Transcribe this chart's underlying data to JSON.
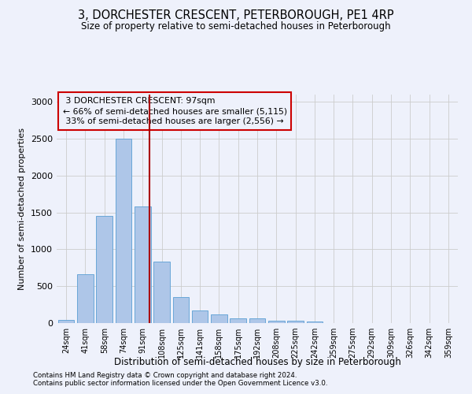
{
  "title1": "3, DORCHESTER CRESCENT, PETERBOROUGH, PE1 4RP",
  "title2": "Size of property relative to semi-detached houses in Peterborough",
  "xlabel": "Distribution of semi-detached houses by size in Peterborough",
  "ylabel": "Number of semi-detached properties",
  "categories": [
    "24sqm",
    "41sqm",
    "58sqm",
    "74sqm",
    "91sqm",
    "108sqm",
    "125sqm",
    "141sqm",
    "158sqm",
    "175sqm",
    "192sqm",
    "208sqm",
    "225sqm",
    "242sqm",
    "259sqm",
    "275sqm",
    "292sqm",
    "309sqm",
    "326sqm",
    "342sqm",
    "359sqm"
  ],
  "values": [
    40,
    660,
    1450,
    2500,
    1580,
    830,
    350,
    175,
    120,
    60,
    60,
    35,
    30,
    20,
    5,
    5,
    5,
    5,
    3,
    3,
    2
  ],
  "bar_color": "#aec6e8",
  "bar_edge_color": "#5a9fd4",
  "bg_color": "#eef1fb",
  "grid_color": "#cccccc",
  "property_label": "3 DORCHESTER CRESCENT: 97sqm",
  "pct_smaller": 66,
  "n_smaller": 5115,
  "pct_larger": 33,
  "n_larger": 2556,
  "vline_color": "#aa0000",
  "annotation_box_color": "#cc0000",
  "vline_index": 4.35,
  "ylim": [
    0,
    3100
  ],
  "footnote1": "Contains HM Land Registry data © Crown copyright and database right 2024.",
  "footnote2": "Contains public sector information licensed under the Open Government Licence v3.0."
}
